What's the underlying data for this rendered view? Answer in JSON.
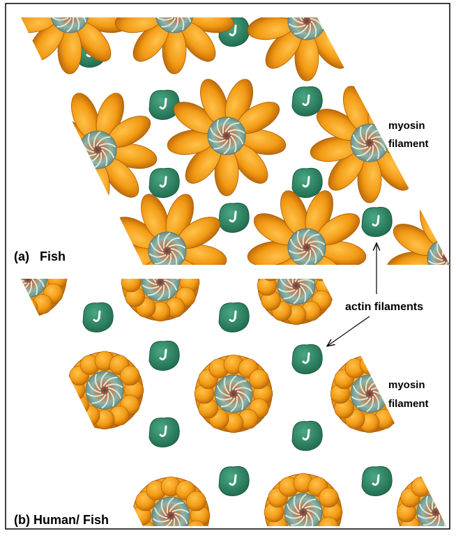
{
  "panels": [
    {
      "label": "(a)   Fish",
      "annotation": [
        "myosin",
        "filament"
      ]
    },
    {
      "label": "(b) Human/ Fish",
      "annotation": [
        "myosin",
        "filament"
      ]
    }
  ],
  "actin_label": "actin filaments"
}
